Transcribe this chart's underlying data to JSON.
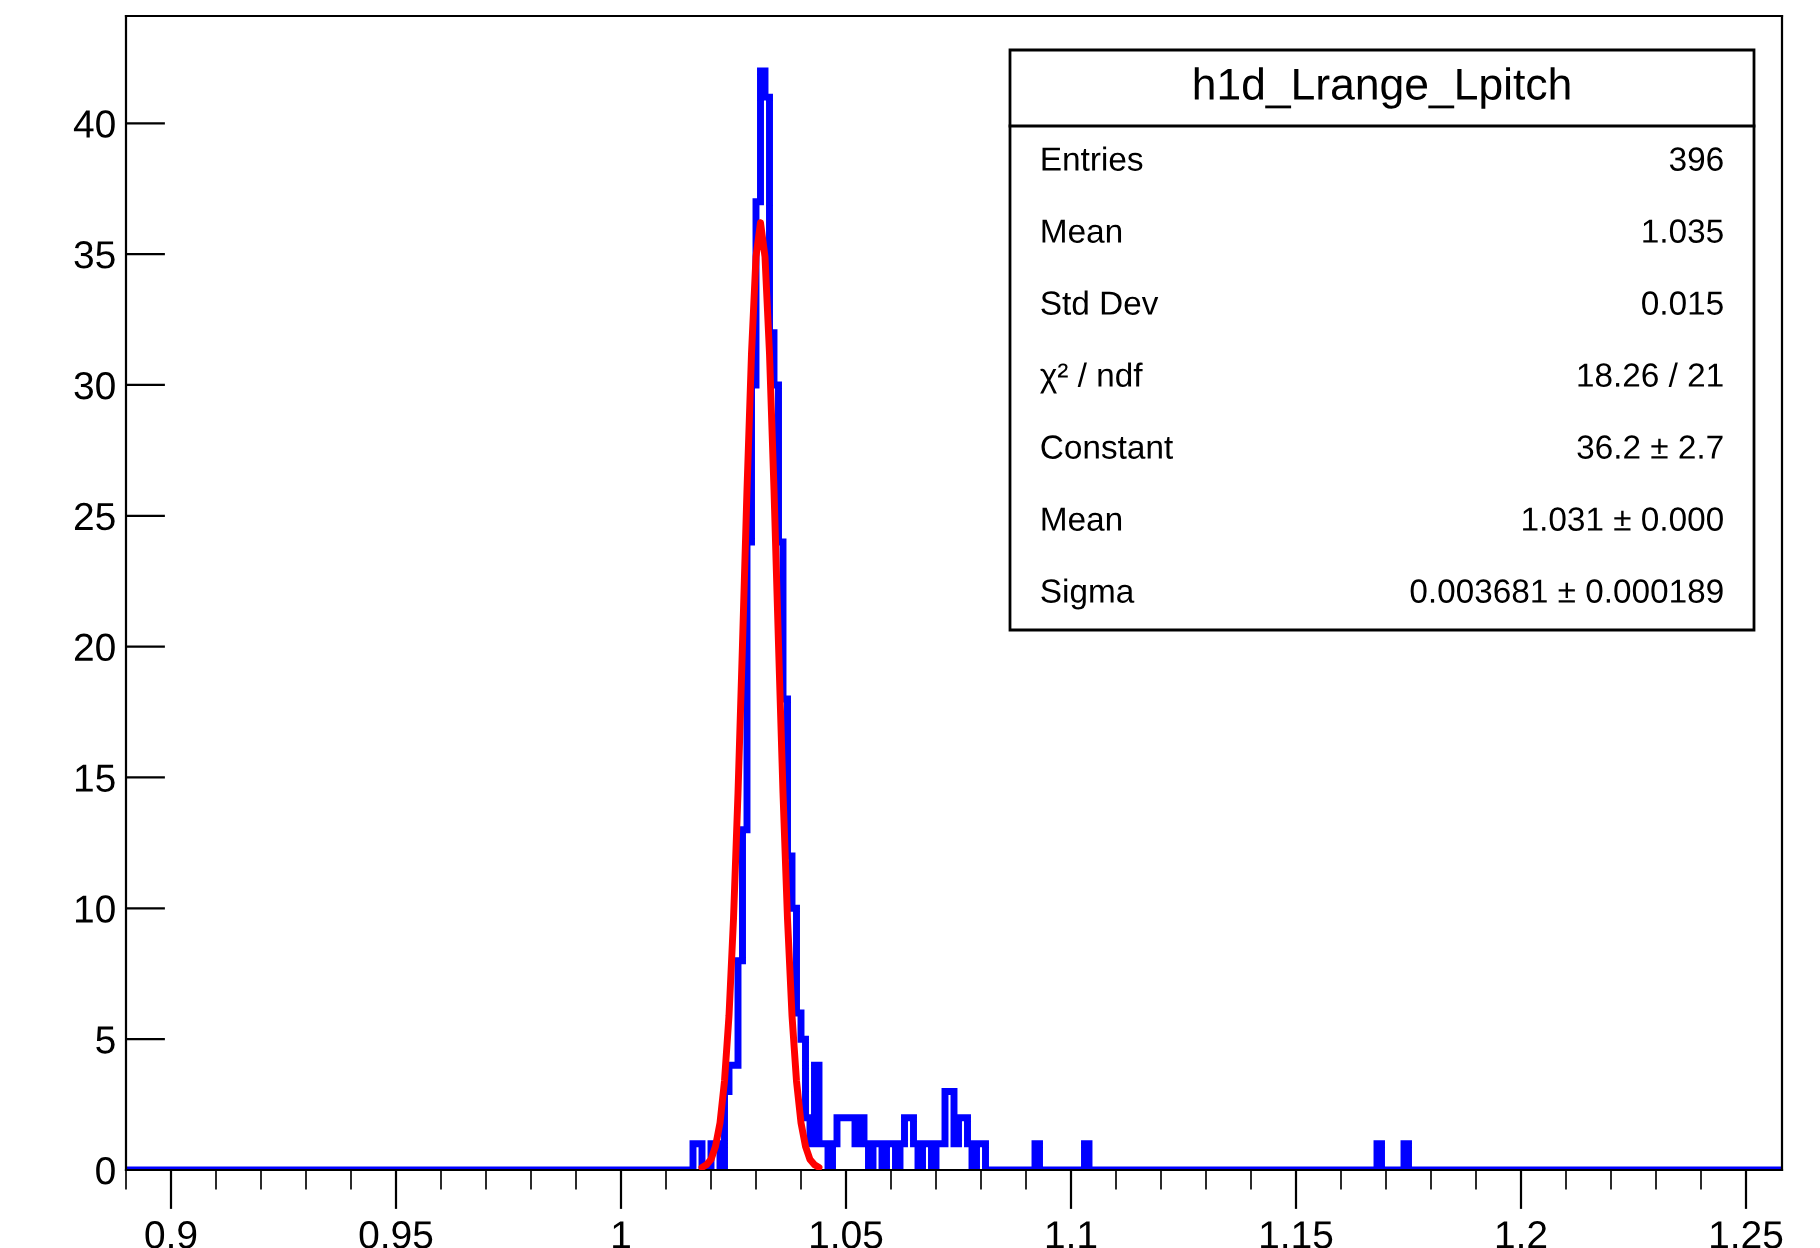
{
  "chart_data": {
    "type": "histogram",
    "title": "h1d_Lrange_Lpitch",
    "annotations": [
      "Entries",
      "396",
      "Mean",
      "1.035",
      "Std Dev",
      "0.015",
      "χ² / ndf",
      "18.26 / 21",
      "Constant",
      "36.2 ± 2.7",
      "Mean",
      "1.031 ± 0.000",
      "Sigma",
      "0.003681 ± 0.000189"
    ],
    "xlim": [
      0.89,
      1.258
    ],
    "ylim": [
      0,
      44.1
    ],
    "xticks": [
      0.9,
      0.95,
      1,
      1.05,
      1.1,
      1.15,
      1.2,
      1.25
    ],
    "yticks": [
      0,
      5,
      10,
      15,
      20,
      25,
      30,
      35,
      40
    ],
    "series": [
      {
        "type": "histogram",
        "color": "#0000ff",
        "bins": [
          0.89,
          1.016,
          1.017,
          1.018,
          1.019,
          1.02,
          1.021,
          1.022,
          1.023,
          1.024,
          1.025,
          1.026,
          1.027,
          1.028,
          1.029,
          1.03,
          1.031,
          1.032,
          1.033,
          1.034,
          1.035,
          1.036,
          1.037,
          1.038,
          1.039,
          1.04,
          1.041,
          1.042,
          1.043,
          1.044,
          1.045,
          1.046,
          1.047,
          1.048,
          1.049,
          1.05,
          1.051,
          1.052,
          1.053,
          1.054,
          1.055,
          1.056,
          1.057,
          1.058,
          1.059,
          1.06,
          1.061,
          1.062,
          1.063,
          1.064,
          1.065,
          1.066,
          1.067,
          1.068,
          1.069,
          1.07,
          1.071,
          1.072,
          1.073,
          1.074,
          1.075,
          1.076,
          1.077,
          1.078,
          1.079,
          1.08,
          1.081,
          1.092,
          1.093,
          1.103,
          1.104,
          1.168,
          1.169,
          1.174,
          1.175,
          1.258
        ],
        "values": [
          0,
          1,
          1,
          0,
          0,
          1,
          1,
          0,
          3,
          4,
          4,
          8,
          13,
          24,
          30,
          37,
          42,
          41,
          32,
          30,
          24,
          18,
          12,
          10,
          6,
          5,
          2,
          1,
          4,
          1,
          1,
          0,
          1,
          2,
          2,
          2,
          2,
          1,
          2,
          1,
          0,
          1,
          1,
          0,
          1,
          1,
          0,
          1,
          2,
          2,
          1,
          0,
          1,
          1,
          0,
          1,
          1,
          3,
          3,
          1,
          2,
          2,
          1,
          0,
          1,
          1,
          0,
          1,
          0,
          1,
          0,
          1,
          0,
          1,
          0
        ]
      },
      {
        "type": "line",
        "color": "#ff0000",
        "x": [
          1.018,
          1.019,
          1.02,
          1.021,
          1.022,
          1.023,
          1.024,
          1.025,
          1.026,
          1.027,
          1.028,
          1.029,
          1.03,
          1.031,
          1.032,
          1.033,
          1.034,
          1.035,
          1.036,
          1.037,
          1.038,
          1.039,
          1.04,
          1.041,
          1.042,
          1.043,
          1.044
        ],
        "values": [
          0.1,
          0.2,
          0.4,
          0.9,
          1.8,
          3.4,
          5.9,
          9.6,
          14.4,
          20.1,
          26.0,
          31.2,
          34.9,
          36.2,
          34.9,
          31.2,
          26.0,
          20.1,
          14.4,
          9.6,
          5.9,
          3.4,
          1.8,
          0.9,
          0.4,
          0.2,
          0.1
        ]
      }
    ]
  }
}
